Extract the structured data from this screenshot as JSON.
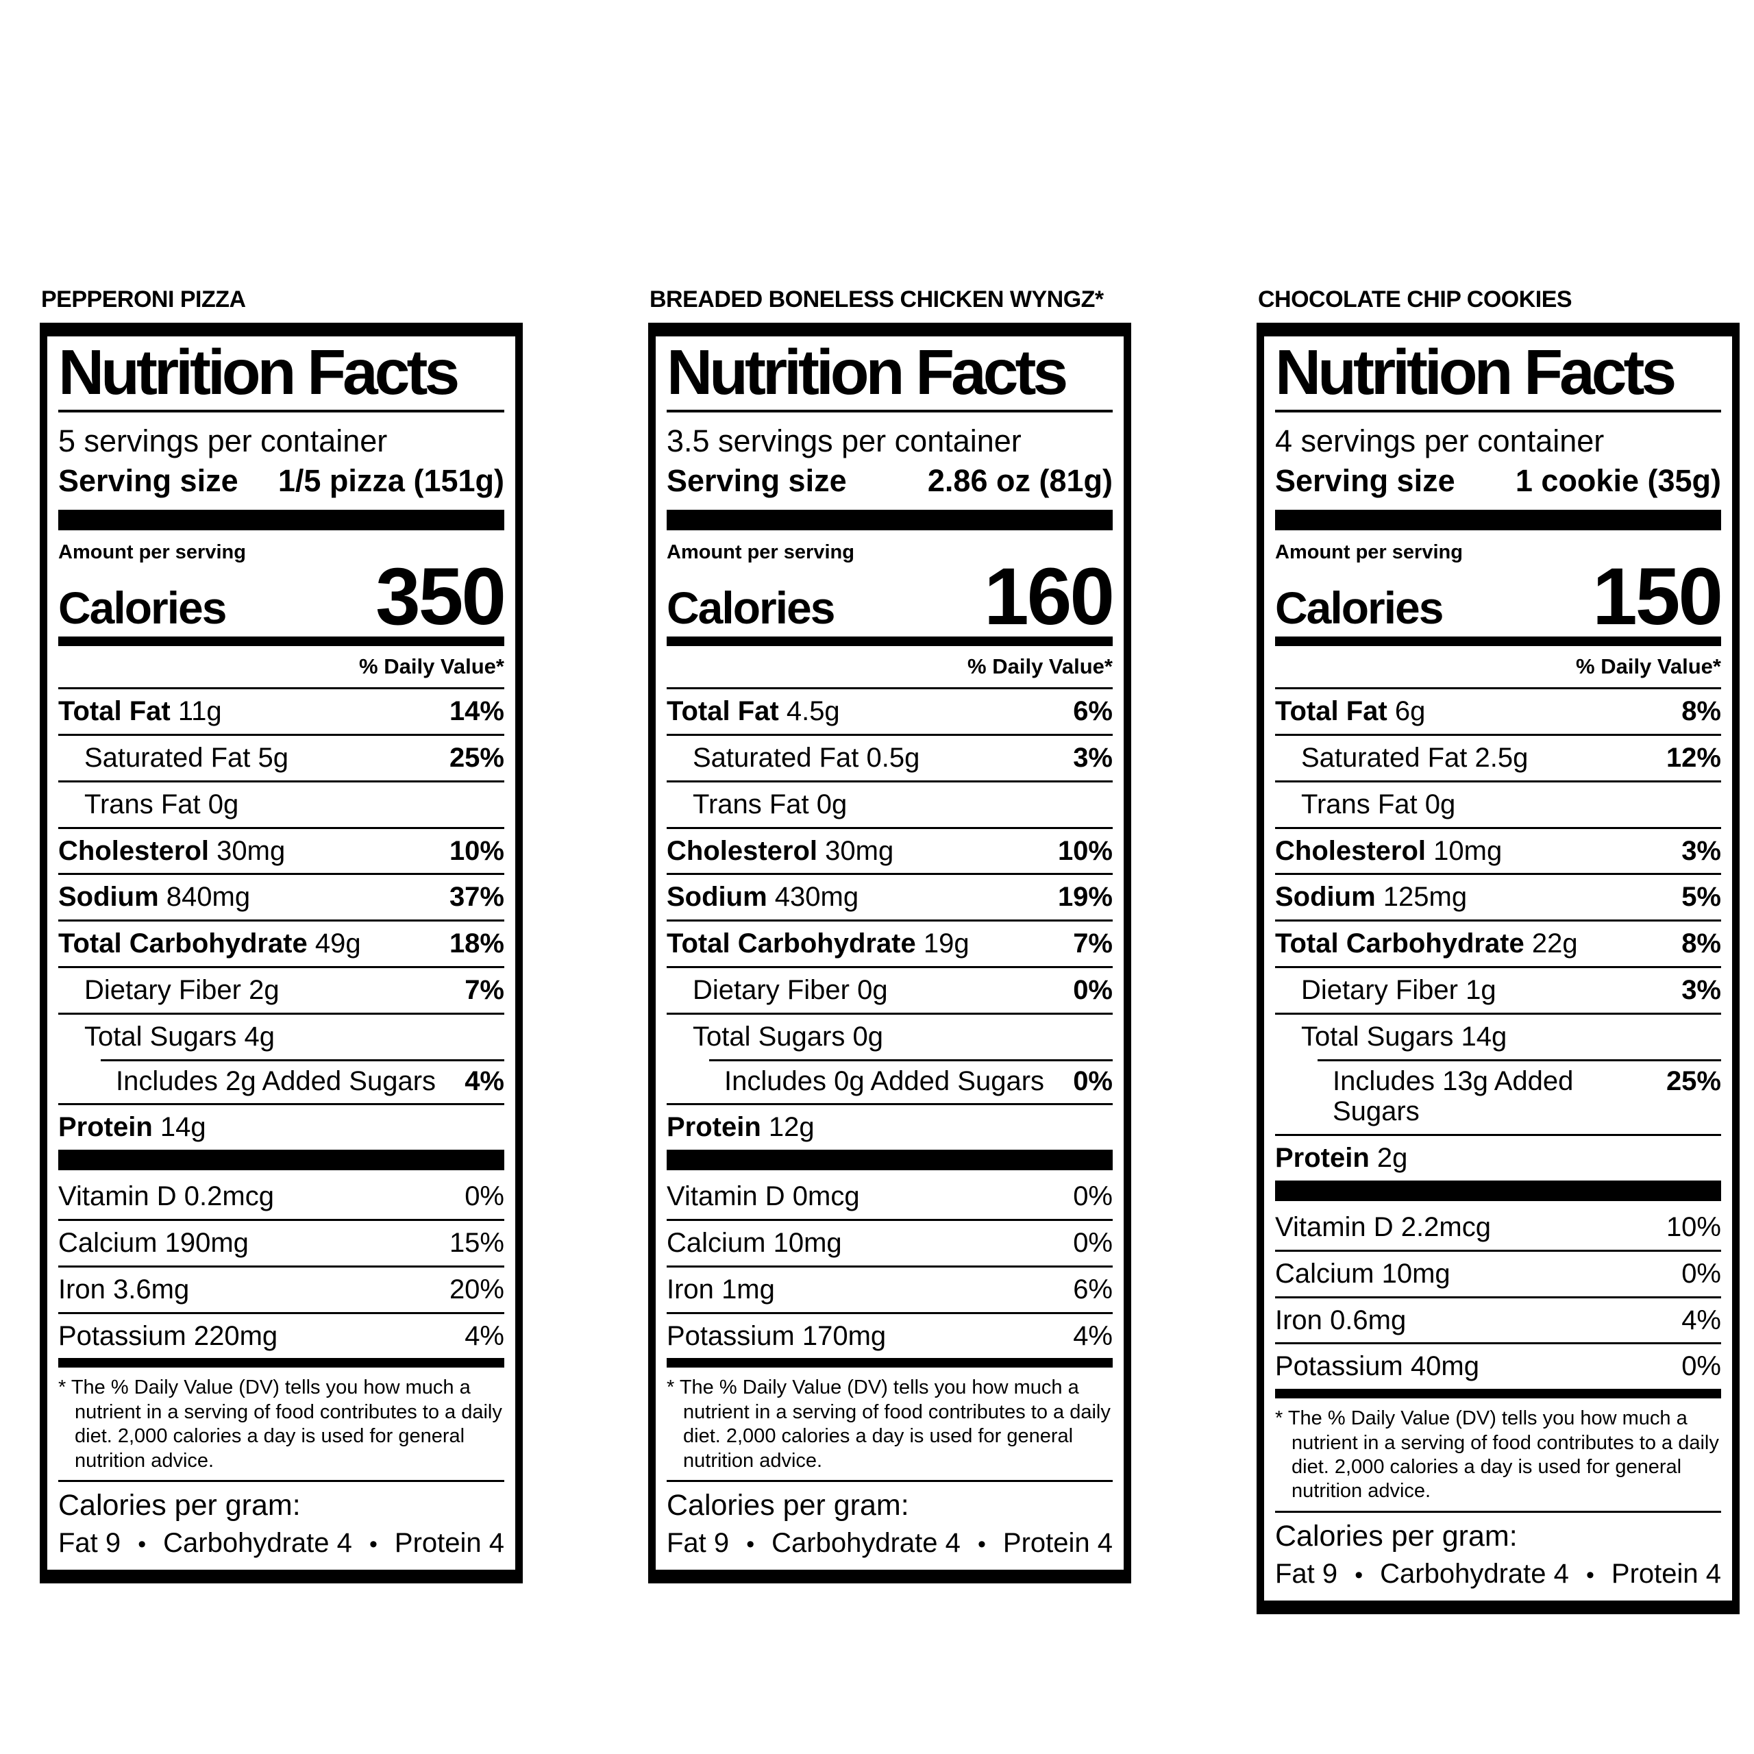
{
  "page": {
    "background": "#ffffff",
    "ink": "#000000"
  },
  "ui": {
    "bullet": "•"
  },
  "labels": [
    {
      "product_title": "PEPPERONI PIZZA",
      "heading": "Nutrition Facts",
      "servings_per_container": "5 servings per container",
      "serving_size_label": "Serving size",
      "serving_size_value": "1/5 pizza (151g)",
      "amount_per_serving": "Amount per serving",
      "calories_label": "Calories",
      "calories_value": "350",
      "daily_value_header": "% Daily Value*",
      "nutrients": [
        {
          "name": "Total Fat",
          "amount": "11g",
          "dv": "14%",
          "style": "bold",
          "indent": 0
        },
        {
          "name": "Saturated Fat",
          "amount": "5g",
          "dv": "25%",
          "style": "regular",
          "indent": 1
        },
        {
          "name": "Trans Fat",
          "amount": "0g",
          "dv": "",
          "style": "regular",
          "indent": 1
        },
        {
          "name": "Cholesterol",
          "amount": "30mg",
          "dv": "10%",
          "style": "bold",
          "indent": 0
        },
        {
          "name": "Sodium",
          "amount": "840mg",
          "dv": "37%",
          "style": "bold",
          "indent": 0
        },
        {
          "name": "Total Carbohydrate",
          "amount": "49g",
          "dv": "18%",
          "style": "bold",
          "indent": 0
        },
        {
          "name": "Dietary Fiber",
          "amount": "2g",
          "dv": "7%",
          "style": "regular",
          "indent": 1
        },
        {
          "name": "Total Sugars",
          "amount": "4g",
          "dv": "",
          "style": "regular",
          "indent": 1
        },
        {
          "name": "Includes 2g Added Sugars",
          "amount": "",
          "dv": "4%",
          "style": "regular",
          "indent": 2,
          "partial_rule": true
        },
        {
          "name": "Protein",
          "amount": "14g",
          "dv": "",
          "style": "bold",
          "indent": 0
        }
      ],
      "vitamins": [
        {
          "name": "Vitamin D",
          "amount": "0.2mcg",
          "dv": "0%"
        },
        {
          "name": "Calcium",
          "amount": "190mg",
          "dv": "15%"
        },
        {
          "name": "Iron",
          "amount": "3.6mg",
          "dv": "20%"
        },
        {
          "name": "Potassium",
          "amount": "220mg",
          "dv": "4%"
        }
      ],
      "footnote": "* The % Daily Value (DV) tells you how much a nutrient in a serving of food contributes to a daily diet. 2,000 calories a day is used for general nutrition advice.",
      "calories_per_gram_label": "Calories per gram:",
      "calories_per_gram": [
        "Fat 9",
        "Carbohydrate 4",
        "Protein 4"
      ]
    },
    {
      "product_title": "BREADED BONELESS CHICKEN WYNGZ*",
      "heading": "Nutrition Facts",
      "servings_per_container": "3.5 servings per container",
      "serving_size_label": "Serving size",
      "serving_size_value": "2.86 oz (81g)",
      "amount_per_serving": "Amount per serving",
      "calories_label": "Calories",
      "calories_value": "160",
      "daily_value_header": "% Daily Value*",
      "nutrients": [
        {
          "name": "Total Fat",
          "amount": "4.5g",
          "dv": "6%",
          "style": "bold",
          "indent": 0
        },
        {
          "name": "Saturated Fat",
          "amount": "0.5g",
          "dv": "3%",
          "style": "regular",
          "indent": 1
        },
        {
          "name": "Trans Fat",
          "amount": "0g",
          "dv": "",
          "style": "regular",
          "indent": 1
        },
        {
          "name": "Cholesterol",
          "amount": "30mg",
          "dv": "10%",
          "style": "bold",
          "indent": 0
        },
        {
          "name": "Sodium",
          "amount": "430mg",
          "dv": "19%",
          "style": "bold",
          "indent": 0
        },
        {
          "name": "Total Carbohydrate",
          "amount": "19g",
          "dv": "7%",
          "style": "bold",
          "indent": 0
        },
        {
          "name": "Dietary Fiber",
          "amount": "0g",
          "dv": "0%",
          "style": "regular",
          "indent": 1
        },
        {
          "name": "Total Sugars",
          "amount": "0g",
          "dv": "",
          "style": "regular",
          "indent": 1
        },
        {
          "name": "Includes 0g Added Sugars",
          "amount": "",
          "dv": "0%",
          "style": "regular",
          "indent": 2,
          "partial_rule": true
        },
        {
          "name": "Protein",
          "amount": "12g",
          "dv": "",
          "style": "bold",
          "indent": 0
        }
      ],
      "vitamins": [
        {
          "name": "Vitamin D",
          "amount": "0mcg",
          "dv": "0%"
        },
        {
          "name": "Calcium",
          "amount": "10mg",
          "dv": "0%"
        },
        {
          "name": "Iron",
          "amount": "1mg",
          "dv": "6%"
        },
        {
          "name": "Potassium",
          "amount": "170mg",
          "dv": "4%"
        }
      ],
      "footnote": "* The % Daily Value (DV) tells you how much a nutrient in a serving of food contributes to a daily diet. 2,000 calories a day is used for general nutrition advice.",
      "calories_per_gram_label": "Calories per gram:",
      "calories_per_gram": [
        "Fat 9",
        "Carbohydrate 4",
        "Protein 4"
      ]
    },
    {
      "product_title": "CHOCOLATE CHIP COOKIES",
      "heading": "Nutrition Facts",
      "servings_per_container": "4 servings per container",
      "serving_size_label": "Serving size",
      "serving_size_value": "1 cookie (35g)",
      "amount_per_serving": "Amount per serving",
      "calories_label": "Calories",
      "calories_value": "150",
      "daily_value_header": "% Daily Value*",
      "nutrients": [
        {
          "name": "Total Fat",
          "amount": "6g",
          "dv": "8%",
          "style": "bold",
          "indent": 0
        },
        {
          "name": "Saturated Fat",
          "amount": "2.5g",
          "dv": "12%",
          "style": "regular",
          "indent": 1
        },
        {
          "name": "Trans Fat",
          "amount": "0g",
          "dv": "",
          "style": "regular",
          "indent": 1
        },
        {
          "name": "Cholesterol",
          "amount": "10mg",
          "dv": "3%",
          "style": "bold",
          "indent": 0
        },
        {
          "name": "Sodium",
          "amount": "125mg",
          "dv": "5%",
          "style": "bold",
          "indent": 0
        },
        {
          "name": "Total Carbohydrate",
          "amount": "22g",
          "dv": "8%",
          "style": "bold",
          "indent": 0
        },
        {
          "name": "Dietary Fiber",
          "amount": "1g",
          "dv": "3%",
          "style": "regular",
          "indent": 1
        },
        {
          "name": "Total Sugars",
          "amount": "14g",
          "dv": "",
          "style": "regular",
          "indent": 1
        },
        {
          "name": "Includes 13g Added Sugars",
          "amount": "",
          "dv": "25%",
          "style": "regular",
          "indent": 2,
          "partial_rule": true
        },
        {
          "name": "Protein",
          "amount": "2g",
          "dv": "",
          "style": "bold",
          "indent": 0
        }
      ],
      "vitamins": [
        {
          "name": "Vitamin D",
          "amount": "2.2mcg",
          "dv": "10%"
        },
        {
          "name": "Calcium",
          "amount": "10mg",
          "dv": "0%"
        },
        {
          "name": "Iron",
          "amount": "0.6mg",
          "dv": "4%"
        },
        {
          "name": "Potassium",
          "amount": "40mg",
          "dv": "0%"
        }
      ],
      "footnote": "* The % Daily Value (DV) tells you how much a nutrient in a serving of food contributes to a daily diet. 2,000 calories a day is used for general nutrition advice.",
      "calories_per_gram_label": "Calories per gram:",
      "calories_per_gram": [
        "Fat 9",
        "Carbohydrate 4",
        "Protein 4"
      ]
    }
  ]
}
